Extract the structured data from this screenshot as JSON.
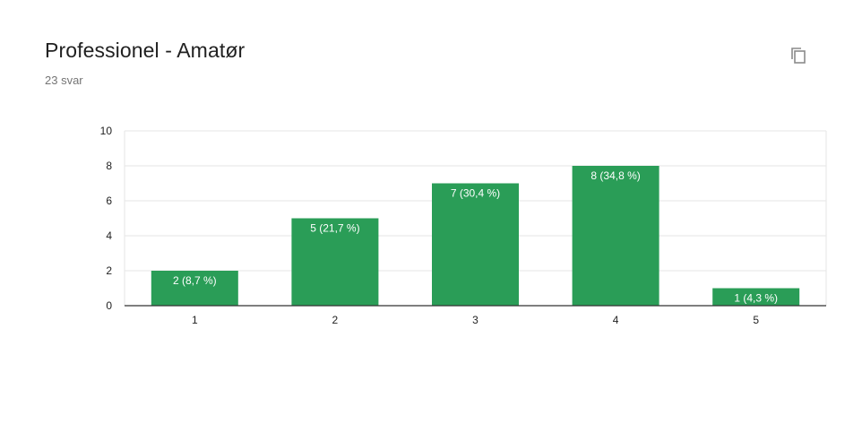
{
  "header": {
    "title": "Professionel - Amatør",
    "response_count": "23 svar",
    "copy_icon": "copy-icon"
  },
  "colors": {
    "bar": "#2a9d57",
    "grid": "#e6e6e6",
    "axis": "#333333"
  },
  "chart_data": {
    "type": "bar",
    "categories": [
      "1",
      "2",
      "3",
      "4",
      "5"
    ],
    "values": [
      2,
      5,
      7,
      8,
      1
    ],
    "data_labels": [
      "2 (8,7 %)",
      "5 (21,7 %)",
      "7 (30,4 %)",
      "8 (34,8 %)",
      "1 (4,3 %)"
    ],
    "ylim": [
      0,
      10
    ],
    "yticks": [
      "0",
      "2",
      "4",
      "6",
      "8",
      "10"
    ],
    "grid": true,
    "legend": "none"
  }
}
